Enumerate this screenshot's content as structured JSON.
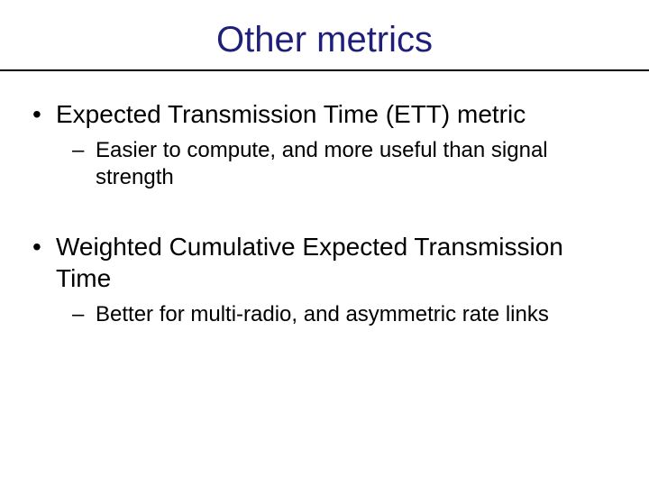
{
  "title": "Other metrics",
  "colors": {
    "title": "#1f1f7a",
    "body_text": "#000000",
    "background": "#ffffff",
    "rule": "#000000"
  },
  "typography": {
    "title_fontsize_pt": 30,
    "lvl1_fontsize_pt": 21,
    "lvl2_fontsize_pt": 18,
    "font_family": "Arial"
  },
  "bullets": [
    {
      "text": "Expected Transmission Time (ETT) metric",
      "sub": [
        "Easier to compute, and more useful than signal strength"
      ]
    },
    {
      "text": "Weighted Cumulative Expected Transmission Time",
      "sub": [
        "Better for multi-radio, and asymmetric rate links"
      ]
    }
  ]
}
